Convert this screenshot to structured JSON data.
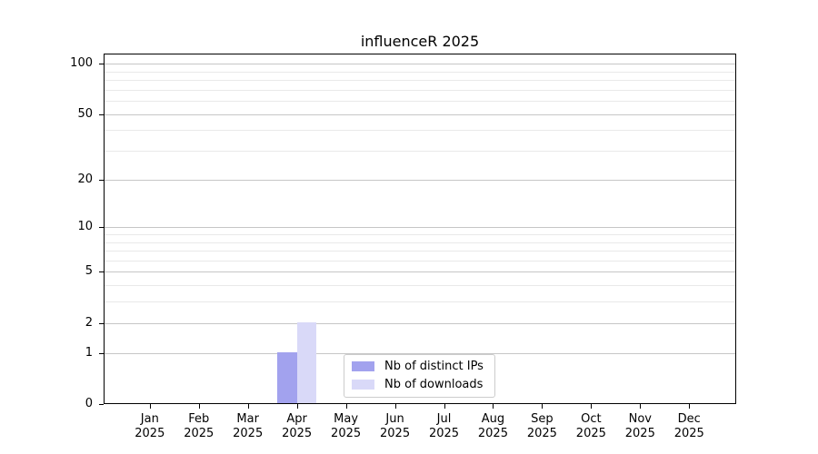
{
  "chart_data": {
    "type": "bar",
    "title": "influenceR 2025",
    "categories": [
      "Jan",
      "Feb",
      "Mar",
      "Apr",
      "May",
      "Jun",
      "Jul",
      "Aug",
      "Sep",
      "Oct",
      "Nov",
      "Dec"
    ],
    "year_label": "2025",
    "series": [
      {
        "name": "Nb of distinct IPs",
        "color": "#a2a2ee",
        "values": [
          0,
          0,
          0,
          1,
          0,
          0,
          0,
          0,
          0,
          0,
          0,
          0
        ]
      },
      {
        "name": "Nb of downloads",
        "color": "#d9d9f8",
        "values": [
          0,
          0,
          0,
          2,
          0,
          0,
          0,
          0,
          0,
          0,
          0,
          0
        ]
      }
    ],
    "yscale": "log1p",
    "ytick_values": [
      0,
      1,
      2,
      5,
      10,
      20,
      50,
      100
    ],
    "yminor_values": [
      3,
      4,
      6,
      7,
      8,
      9,
      30,
      40,
      60,
      70,
      80,
      90
    ],
    "ylim": [
      0,
      115
    ],
    "xlabel": "",
    "ylabel": "",
    "grid": "horizontal",
    "legend_position": "lower center inside"
  }
}
